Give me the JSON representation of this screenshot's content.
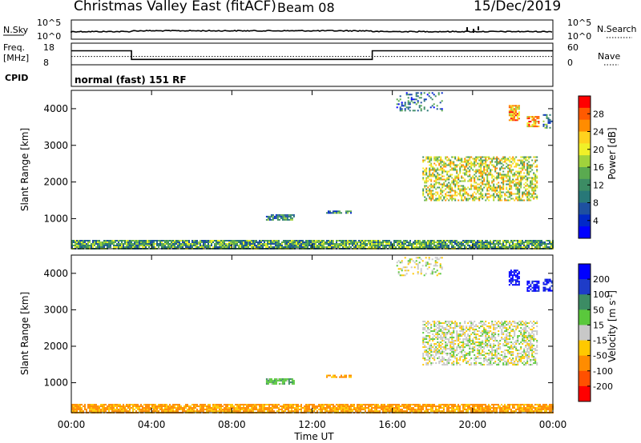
{
  "header": {
    "station": "Christmas Valley East (fitACF)",
    "beam": "Beam 08",
    "date": "15/Dec/2019"
  },
  "noise_panel": {
    "left_label": "N.Sky",
    "left_ticks": [
      "10^5",
      "10^0"
    ],
    "right_label": "N.Search",
    "right_ticks": [
      "10^5",
      "10^0"
    ]
  },
  "freq_panel": {
    "left_label_1": "Freq.",
    "left_label_2": "[MHz]",
    "left_ticks": [
      "18",
      "8"
    ],
    "right_label": "Nave",
    "right_ticks": [
      "60",
      "0"
    ],
    "cpid_label": "CPID",
    "cpid_text": "normal (fast) 151 RF"
  },
  "x_axis": {
    "label": "Time UT",
    "ticks": [
      "00:00",
      "04:00",
      "08:00",
      "12:00",
      "16:00",
      "20:00",
      "00:00"
    ]
  },
  "power_colorbar": {
    "label": "Power [dB]",
    "tick_labels": [
      "28",
      "24",
      "20",
      "16",
      "12",
      "8",
      "4"
    ],
    "colors": [
      "#ff0000",
      "#ff5a00",
      "#ff8c00",
      "#ffd21e",
      "#f0f028",
      "#a0d23c",
      "#5aaa50",
      "#3c8c64",
      "#287878",
      "#1e50a0",
      "#0028c8",
      "#0000ff"
    ]
  },
  "velocity_colorbar": {
    "label_main": "Velocity [m s",
    "label_sup": "-1",
    "label_end": "]",
    "tick_labels": [
      "200",
      "100",
      "50",
      "15",
      "-15",
      "-50",
      "-100",
      "-200"
    ],
    "colors": [
      "#0000ff",
      "#1e3cc8",
      "#3c8c64",
      "#5ac83c",
      "#c8c8c8",
      "#ffc800",
      "#ff8c00",
      "#ff5000",
      "#ff0000"
    ]
  },
  "chart_data": [
    {
      "type": "line",
      "name": "noise",
      "x": [
        0,
        24
      ],
      "y_ticks": [
        "10^0",
        "10^5"
      ],
      "note_values": "sky noise ~ constant near 10^0.2"
    },
    {
      "type": "line",
      "name": "frequency_and_nave",
      "x_hours": [
        0,
        3,
        3,
        15,
        15,
        24
      ],
      "freq_mhz": [
        14.5,
        14.5,
        10.5,
        10.5,
        14.5,
        14.5
      ],
      "nave_dotted": 23,
      "ylim_freq": [
        8,
        18
      ],
      "ylim_nave": [
        0,
        60
      ]
    },
    {
      "type": "heatmap",
      "title": "Power",
      "ylabel": "Slant Range [km]",
      "xlim_hours": [
        0,
        24
      ],
      "ylim_km": [
        180,
        4500
      ],
      "y_ticks": [
        1000,
        2000,
        3000,
        4000
      ],
      "colorbar_label": "Power [dB]",
      "colorbar_range": [
        0,
        30
      ],
      "regions": [
        {
          "t0": 0.0,
          "t1": 24.0,
          "r0": 200,
          "r1": 420,
          "value": 12,
          "density": 0.9
        },
        {
          "t0": 9.7,
          "t1": 11.1,
          "r0": 980,
          "r1": 1120,
          "value": 10,
          "density": 0.8
        },
        {
          "t0": 12.7,
          "t1": 13.9,
          "r0": 1140,
          "r1": 1220,
          "value": 10,
          "density": 0.7
        },
        {
          "t0": 17.5,
          "t1": 23.2,
          "r0": 1500,
          "r1": 2700,
          "value": 18,
          "density": 0.55
        },
        {
          "t0": 16.2,
          "t1": 18.5,
          "r0": 3950,
          "r1": 4450,
          "value": 8,
          "density": 0.3
        },
        {
          "t0": 21.8,
          "t1": 22.3,
          "r0": 3700,
          "r1": 4100,
          "value": 22,
          "density": 0.8
        },
        {
          "t0": 22.7,
          "t1": 23.3,
          "r0": 3500,
          "r1": 3800,
          "value": 22,
          "density": 0.7
        },
        {
          "t0": 23.5,
          "t1": 23.9,
          "r0": 3500,
          "r1": 3850,
          "value": 10,
          "density": 0.5
        }
      ]
    },
    {
      "type": "heatmap",
      "title": "Velocity",
      "ylabel": "Slant Range [km]",
      "xlim_hours": [
        0,
        24
      ],
      "ylim_km": [
        180,
        4500
      ],
      "y_ticks": [
        1000,
        2000,
        3000,
        4000
      ],
      "colorbar_label": "Velocity [m s-1]",
      "colorbar_range": [
        -200,
        200
      ],
      "regions": [
        {
          "t0": 0.0,
          "t1": 24.0,
          "r0": 200,
          "r1": 420,
          "value": -60,
          "density": 0.85
        },
        {
          "t0": 9.7,
          "t1": 11.1,
          "r0": 980,
          "r1": 1120,
          "value": 40,
          "density": 0.8
        },
        {
          "t0": 12.7,
          "t1": 13.9,
          "r0": 1140,
          "r1": 1220,
          "value": -60,
          "density": 0.7
        },
        {
          "t0": 17.5,
          "t1": 23.2,
          "r0": 1500,
          "r1": 2700,
          "value": 0,
          "density": 0.55
        },
        {
          "t0": 16.2,
          "t1": 18.5,
          "r0": 3950,
          "r1": 4450,
          "value": 0,
          "density": 0.3
        },
        {
          "t0": 21.8,
          "t1": 22.3,
          "r0": 3700,
          "r1": 4100,
          "value": 220,
          "density": 0.8
        },
        {
          "t0": 22.7,
          "t1": 23.3,
          "r0": 3500,
          "r1": 3800,
          "value": 220,
          "density": 0.7
        },
        {
          "t0": 23.5,
          "t1": 23.9,
          "r0": 3500,
          "r1": 3850,
          "value": 200,
          "density": 0.5
        }
      ]
    }
  ]
}
